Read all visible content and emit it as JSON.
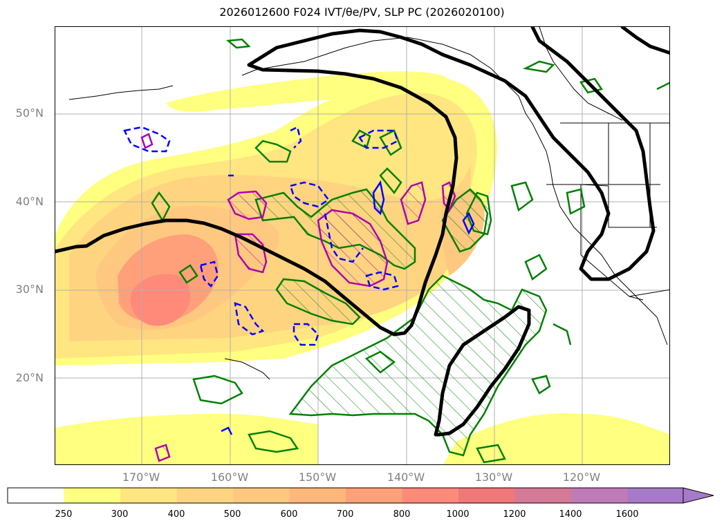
{
  "title": "2026012600 F024 IVT/θe/PV, SLP PC (2026020100)",
  "map": {
    "lat_labels": [
      "50°N",
      "40°N",
      "30°N",
      "20°N"
    ],
    "lon_labels": [
      "170°W",
      "160°W",
      "150°W",
      "140°W",
      "130°W",
      "120°W"
    ],
    "grid": true
  },
  "colorbar": {
    "ticks": [
      "250",
      "300",
      "400",
      "500",
      "600",
      "700",
      "800",
      "1000",
      "1200",
      "1400",
      "1600"
    ],
    "colors": [
      "#ffffff",
      "#ffff80",
      "#ffe680",
      "#ffd480",
      "#ffc880",
      "#ffb87a",
      "#ffa07a",
      "#ff8a7a",
      "#f07878",
      "#d47a96",
      "#c07ab8",
      "#a67ac8"
    ],
    "extend": "max"
  },
  "colors": {
    "slp_contour": "#000000",
    "theta_e_contour": "#008000",
    "pv_dashed": "#0000ff",
    "pv_solid": "#b000b0",
    "grid": "#b0b0b0",
    "axis_label": "#808080"
  }
}
